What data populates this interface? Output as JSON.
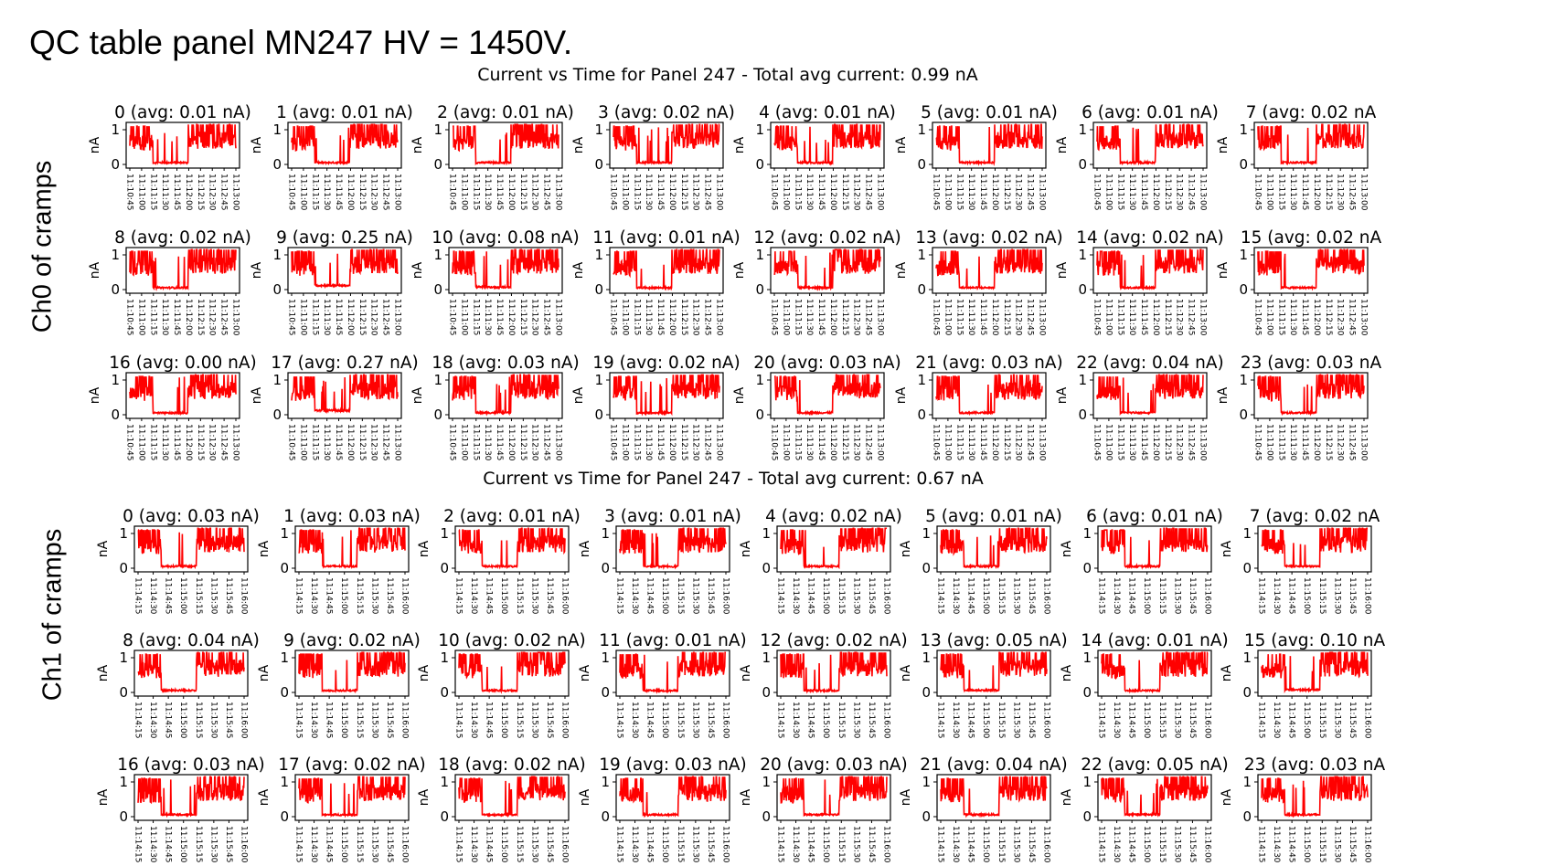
{
  "slide": {
    "title": "QC table panel MN247 HV = 1450V.",
    "side_labels": [
      "Ch0 of cramps",
      "Ch1 of cramps"
    ]
  },
  "colors": {
    "trace": "#ff0000",
    "axes": "#000000",
    "background": "#ffffff"
  },
  "chart_data": [
    {
      "type": "line",
      "title": "Current vs Time for Panel 247 - Total avg current: 0.99 nA",
      "ylabel": "nA",
      "yticks": [
        "0",
        "1"
      ],
      "ylim": [
        0,
        1
      ],
      "xticks": [
        "11:10:45",
        "11:11:00",
        "11:11:15",
        "11:11:30",
        "11:11:45",
        "11:12:00",
        "11:12:15",
        "11:12:30",
        "11:12:45",
        "11:13:00"
      ],
      "grid": false,
      "layout": "3x8 grid of subplots",
      "panels": [
        {
          "title": "0 (avg: 0.01 nA)",
          "avg": 0.01
        },
        {
          "title": "1 (avg: 0.01 nA)",
          "avg": 0.01
        },
        {
          "title": "2 (avg: 0.01 nA)",
          "avg": 0.01
        },
        {
          "title": "3 (avg: 0.02 nA)",
          "avg": 0.02
        },
        {
          "title": "4 (avg: 0.01 nA)",
          "avg": 0.01
        },
        {
          "title": "5 (avg: 0.01 nA)",
          "avg": 0.01
        },
        {
          "title": "6 (avg: 0.01 nA)",
          "avg": 0.01
        },
        {
          "title": "7 (avg: 0.02 nA",
          "avg": 0.02
        },
        {
          "title": "8 (avg: 0.02 nA)",
          "avg": 0.02
        },
        {
          "title": "9 (avg: 0.25 nA)",
          "avg": 0.25
        },
        {
          "title": "10 (avg: 0.08 nA)",
          "avg": 0.08
        },
        {
          "title": "11 (avg: 0.01 nA)",
          "avg": 0.01
        },
        {
          "title": "12 (avg: 0.02 nA)",
          "avg": 0.02
        },
        {
          "title": "13 (avg: 0.02 nA)",
          "avg": 0.02
        },
        {
          "title": "14 (avg: 0.02 nA)",
          "avg": 0.02
        },
        {
          "title": "15 (avg: 0.02 nA",
          "avg": 0.02
        },
        {
          "title": "16 (avg: 0.00 nA)",
          "avg": 0.0
        },
        {
          "title": "17 (avg: 0.27 nA)",
          "avg": 0.27
        },
        {
          "title": "18 (avg: 0.03 nA)",
          "avg": 0.03
        },
        {
          "title": "19 (avg: 0.02 nA)",
          "avg": 0.02
        },
        {
          "title": "20 (avg: 0.03 nA)",
          "avg": 0.03
        },
        {
          "title": "21 (avg: 0.03 nA)",
          "avg": 0.03
        },
        {
          "title": "22 (avg: 0.04 nA)",
          "avg": 0.04
        },
        {
          "title": "23 (avg: 0.03 nA",
          "avg": 0.03
        }
      ]
    },
    {
      "type": "line",
      "title": "Current vs Time for Panel 247 - Total avg current: 0.67 nA",
      "ylabel": "nA",
      "yticks": [
        "0",
        "1"
      ],
      "ylim": [
        0,
        1
      ],
      "xticks": [
        "11:14:15",
        "11:14:30",
        "11:14:45",
        "11:15:00",
        "11:15:15",
        "11:15:30",
        "11:15:45",
        "11:16:00"
      ],
      "grid": false,
      "layout": "3x8 grid of subplots",
      "panels": [
        {
          "title": "0 (avg: 0.03 nA)",
          "avg": 0.03
        },
        {
          "title": "1 (avg: 0.03 nA)",
          "avg": 0.03
        },
        {
          "title": "2 (avg: 0.01 nA)",
          "avg": 0.01
        },
        {
          "title": "3 (avg: 0.01 nA)",
          "avg": 0.01
        },
        {
          "title": "4 (avg: 0.02 nA)",
          "avg": 0.02
        },
        {
          "title": "5 (avg: 0.01 nA)",
          "avg": 0.01
        },
        {
          "title": "6 (avg: 0.01 nA)",
          "avg": 0.01
        },
        {
          "title": "7 (avg: 0.02 nA",
          "avg": 0.02
        },
        {
          "title": "8 (avg: 0.04 nA)",
          "avg": 0.04
        },
        {
          "title": "9 (avg: 0.02 nA)",
          "avg": 0.02
        },
        {
          "title": "10 (avg: 0.02 nA)",
          "avg": 0.02
        },
        {
          "title": "11 (avg: 0.01 nA)",
          "avg": 0.01
        },
        {
          "title": "12 (avg: 0.02 nA)",
          "avg": 0.02
        },
        {
          "title": "13 (avg: 0.05 nA)",
          "avg": 0.05
        },
        {
          "title": "14 (avg: 0.01 nA)",
          "avg": 0.01
        },
        {
          "title": "15 (avg: 0.10 nA",
          "avg": 0.1
        },
        {
          "title": "16 (avg: 0.03 nA)",
          "avg": 0.03
        },
        {
          "title": "17 (avg: 0.02 nA)",
          "avg": 0.02
        },
        {
          "title": "18 (avg: 0.02 nA)",
          "avg": 0.02
        },
        {
          "title": "19 (avg: 0.03 nA)",
          "avg": 0.03
        },
        {
          "title": "20 (avg: 0.03 nA)",
          "avg": 0.03
        },
        {
          "title": "21 (avg: 0.04 nA)",
          "avg": 0.04
        },
        {
          "title": "22 (avg: 0.05 nA)",
          "avg": 0.05
        },
        {
          "title": "23 (avg: 0.03 nA",
          "avg": 0.03
        }
      ]
    }
  ]
}
